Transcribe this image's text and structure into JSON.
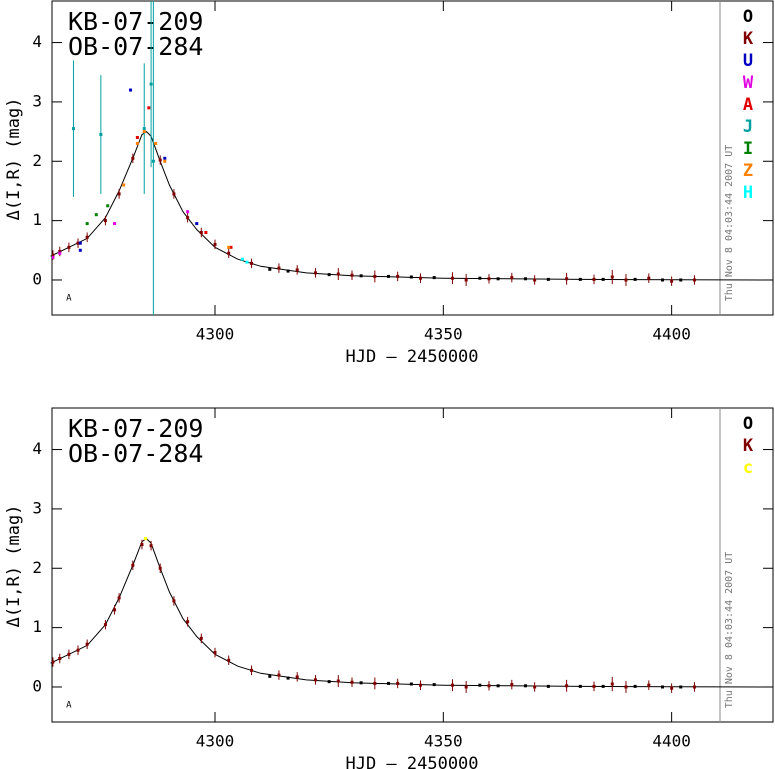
{
  "chart_data": [
    {
      "type": "scatter",
      "title": "KB-07-209",
      "subtitle": "OB-07-284",
      "xlabel": "HJD – 2450000",
      "ylabel": "Δ(I,R) (mag)",
      "timestamp": "Thu Nov  8 04:03:44 2007 UT",
      "annotation": {
        "text": "A",
        "x": 4268,
        "y": -0.3
      },
      "xlim": [
        4264.3,
        4422.2
      ],
      "ylim": [
        -0.59,
        4.7
      ],
      "xticks": [
        4300,
        4350,
        4400
      ],
      "yticks": [
        0,
        1,
        2,
        3,
        4
      ],
      "model": {
        "x": [
          4264,
          4268,
          4272,
          4276,
          4279,
          4282,
          4284,
          4285,
          4286,
          4288,
          4290,
          4293,
          4296,
          4300,
          4305,
          4310,
          4320,
          4330,
          4350,
          4380,
          4422
        ],
        "values": [
          0.4,
          0.55,
          0.7,
          1.05,
          1.5,
          2.05,
          2.45,
          2.5,
          2.42,
          2.0,
          1.6,
          1.15,
          0.85,
          0.55,
          0.35,
          0.23,
          0.12,
          0.07,
          0.03,
          0.01,
          0.0
        ]
      },
      "series": [
        {
          "name": "O",
          "color": "#000000",
          "x": [
            4312,
            4316,
            4325,
            4332,
            4338,
            4343,
            4348,
            4358,
            4362,
            4368,
            4373,
            4380,
            4385,
            4392,
            4398,
            4402
          ],
          "values": [
            0.18,
            0.15,
            0.09,
            0.07,
            0.06,
            0.05,
            0.04,
            0.03,
            0.02,
            0.02,
            0.01,
            0.01,
            0.01,
            0.01,
            0.0,
            0.0
          ]
        },
        {
          "name": "K",
          "color": "#800000",
          "x": [
            4264.5,
            4266,
            4268,
            4270,
            4272,
            4276,
            4279,
            4282,
            4288,
            4291,
            4294,
            4297,
            4300,
            4303,
            4308,
            4314,
            4318,
            4322,
            4327,
            4330,
            4335,
            4340,
            4345,
            4352,
            4355,
            4360,
            4365,
            4370,
            4377,
            4383,
            4387,
            4390,
            4395,
            4400,
            4405
          ],
          "values": [
            0.42,
            0.48,
            0.55,
            0.62,
            0.72,
            1.0,
            1.45,
            2.05,
            2.02,
            1.45,
            1.05,
            0.8,
            0.6,
            0.45,
            0.28,
            0.2,
            0.17,
            0.12,
            0.1,
            0.08,
            0.06,
            0.06,
            0.03,
            0.03,
            0.0,
            0.02,
            0.04,
            0.0,
            0.02,
            0.01,
            0.05,
            0.0,
            0.03,
            -0.02,
            0.0
          ],
          "errors": [
            0.08,
            0.08,
            0.08,
            0.08,
            0.08,
            0.08,
            0.08,
            0.08,
            0.08,
            0.08,
            0.08,
            0.08,
            0.08,
            0.08,
            0.08,
            0.08,
            0.08,
            0.08,
            0.1,
            0.08,
            0.1,
            0.08,
            0.08,
            0.1,
            0.1,
            0.08,
            0.08,
            0.08,
            0.1,
            0.08,
            0.12,
            0.1,
            0.08,
            0.08,
            0.08
          ]
        },
        {
          "name": "U",
          "color": "#0000c0",
          "x": [
            4270.5,
            4270.5,
            4281.5,
            4289,
            4296
          ],
          "values": [
            0.62,
            0.5,
            3.2,
            2.05,
            0.95
          ]
        },
        {
          "name": "W",
          "color": "#e000e0",
          "x": [
            4264.5,
            4266,
            4278,
            4294
          ],
          "values": [
            0.38,
            0.45,
            0.95,
            1.15
          ]
        },
        {
          "name": "A",
          "color": "#e00000",
          "x": [
            4283,
            4285.5,
            4298,
            4303.5
          ],
          "values": [
            2.4,
            2.9,
            0.8,
            0.55
          ]
        },
        {
          "name": "J",
          "color": "#00a0a0",
          "x": [
            4269,
            4275,
            4284.5,
            4286,
            4286.5
          ],
          "values": [
            2.55,
            2.45,
            2.55,
            3.3,
            2.0
          ],
          "errors": [
            1.15,
            1.0,
            1.1,
            1.4,
            2.7
          ]
        },
        {
          "name": "I",
          "color": "#008000",
          "x": [
            4272,
            4274,
            4276.5
          ],
          "values": [
            0.95,
            1.1,
            1.25
          ]
        },
        {
          "name": "Z",
          "color": "#ff8000",
          "x": [
            4280,
            4283,
            4284.5,
            4287,
            4289,
            4303
          ],
          "values": [
            1.6,
            2.3,
            2.5,
            2.3,
            2.0,
            0.55
          ]
        },
        {
          "name": "H",
          "color": "#00ffff",
          "x": [
            4306,
            4307
          ],
          "values": [
            0.35,
            0.3
          ]
        }
      ]
    },
    {
      "type": "scatter",
      "title": "KB-07-209",
      "subtitle": "OB-07-284",
      "xlabel": "HJD – 2450000",
      "ylabel": "Δ(I,R) (mag)",
      "timestamp": "Thu Nov  8 04:03:44 2007 UT",
      "annotation": {
        "text": "A",
        "x": 4268,
        "y": -0.3
      },
      "xlim": [
        4264.3,
        4422.2
      ],
      "ylim": [
        -0.59,
        4.7
      ],
      "xticks": [
        4300,
        4350,
        4400
      ],
      "yticks": [
        0,
        1,
        2,
        3,
        4
      ],
      "model": {
        "x": [
          4264,
          4268,
          4272,
          4276,
          4279,
          4282,
          4284,
          4285,
          4286,
          4288,
          4290,
          4293,
          4296,
          4300,
          4305,
          4310,
          4320,
          4330,
          4350,
          4380,
          4422
        ],
        "values": [
          0.4,
          0.55,
          0.7,
          1.05,
          1.5,
          2.05,
          2.45,
          2.5,
          2.42,
          2.0,
          1.6,
          1.15,
          0.85,
          0.55,
          0.35,
          0.23,
          0.12,
          0.07,
          0.03,
          0.01,
          0.0
        ]
      },
      "series": [
        {
          "name": "O",
          "color": "#000000",
          "x": [
            4312,
            4316,
            4325,
            4332,
            4338,
            4343,
            4348,
            4358,
            4362,
            4368,
            4373,
            4380,
            4385,
            4392,
            4398,
            4402
          ],
          "values": [
            0.18,
            0.15,
            0.09,
            0.07,
            0.06,
            0.05,
            0.04,
            0.03,
            0.02,
            0.02,
            0.01,
            0.01,
            0.01,
            0.01,
            0.0,
            0.0
          ]
        },
        {
          "name": "K",
          "color": "#800000",
          "x": [
            4264.5,
            4266,
            4268,
            4270,
            4272,
            4276,
            4278,
            4279,
            4282,
            4284,
            4286,
            4288,
            4291,
            4294,
            4297,
            4300,
            4303,
            4308,
            4314,
            4318,
            4322,
            4327,
            4330,
            4335,
            4340,
            4345,
            4352,
            4355,
            4360,
            4365,
            4370,
            4377,
            4383,
            4387,
            4390,
            4395,
            4400,
            4405
          ],
          "values": [
            0.42,
            0.48,
            0.55,
            0.62,
            0.72,
            1.05,
            1.3,
            1.5,
            2.05,
            2.4,
            2.38,
            2.0,
            1.45,
            1.1,
            0.82,
            0.58,
            0.45,
            0.28,
            0.2,
            0.17,
            0.12,
            0.1,
            0.08,
            0.06,
            0.06,
            0.03,
            0.03,
            0.0,
            0.02,
            0.04,
            0.0,
            0.02,
            0.01,
            0.05,
            0.0,
            0.03,
            -0.02,
            0.0
          ],
          "errors": [
            0.08,
            0.08,
            0.08,
            0.08,
            0.08,
            0.08,
            0.08,
            0.08,
            0.08,
            0.08,
            0.08,
            0.08,
            0.08,
            0.08,
            0.08,
            0.08,
            0.08,
            0.08,
            0.08,
            0.08,
            0.08,
            0.1,
            0.08,
            0.1,
            0.08,
            0.08,
            0.1,
            0.1,
            0.08,
            0.08,
            0.08,
            0.1,
            0.08,
            0.12,
            0.1,
            0.08,
            0.08,
            0.08
          ]
        },
        {
          "name": "c",
          "color": "#ffff00",
          "x": [
            4284.8
          ],
          "values": [
            2.5
          ]
        }
      ]
    }
  ]
}
